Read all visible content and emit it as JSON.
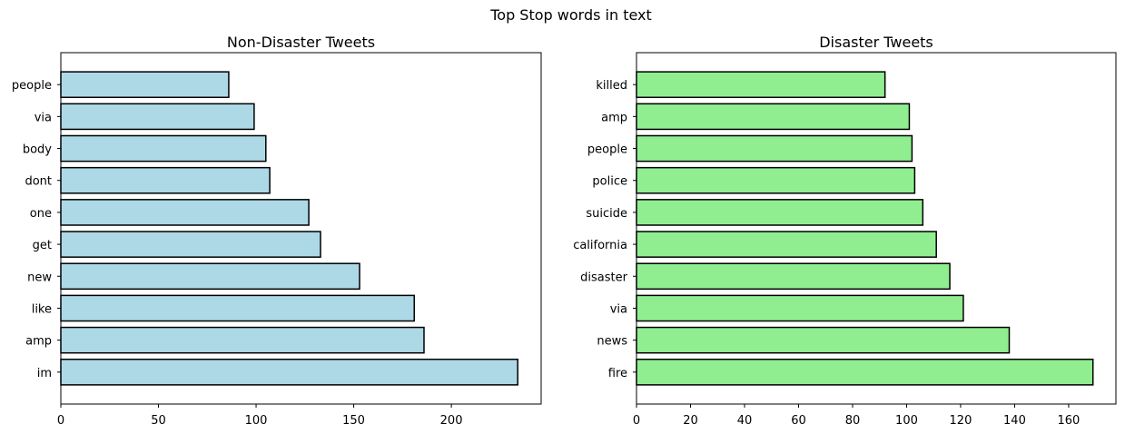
{
  "figure": {
    "suptitle": "Top Stop words in text"
  },
  "chart_data": [
    {
      "type": "bar",
      "orientation": "horizontal",
      "title": "Non-Disaster Tweets",
      "categories": [
        "im",
        "amp",
        "like",
        "new",
        "get",
        "one",
        "dont",
        "body",
        "via",
        "people"
      ],
      "values": [
        234,
        186,
        181,
        153,
        133,
        127,
        107,
        105,
        99,
        86
      ],
      "xlim": [
        0,
        246
      ],
      "xticks": [
        0,
        50,
        100,
        150,
        200
      ],
      "color": "#add8e6",
      "edgecolor": "#000000",
      "xlabel": "",
      "ylabel": "",
      "grid": false
    },
    {
      "type": "bar",
      "orientation": "horizontal",
      "title": "Disaster Tweets",
      "categories": [
        "fire",
        "news",
        "via",
        "disaster",
        "california",
        "suicide",
        "police",
        "people",
        "amp",
        "killed"
      ],
      "values": [
        169,
        138,
        121,
        116,
        111,
        106,
        103,
        102,
        101,
        92
      ],
      "xlim": [
        0,
        177.5
      ],
      "xticks": [
        0,
        20,
        40,
        60,
        80,
        100,
        120,
        140,
        160
      ],
      "color": "#90ee90",
      "edgecolor": "#000000",
      "xlabel": "",
      "ylabel": "",
      "grid": false
    }
  ]
}
